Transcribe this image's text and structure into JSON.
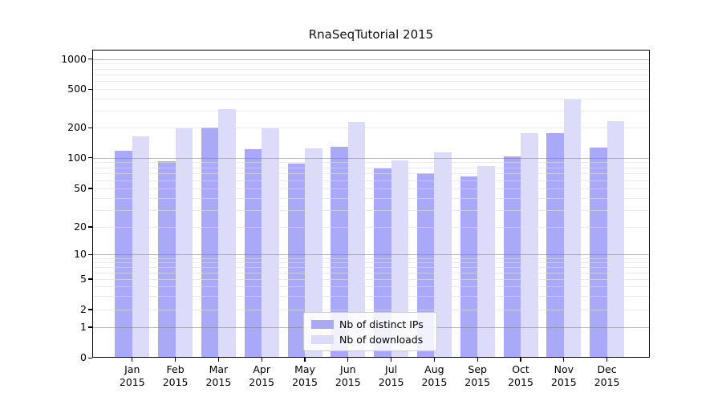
{
  "chart_data": {
    "type": "bar",
    "title": "RnaSeqTutorial 2015",
    "categories": [
      "Jan",
      "Feb",
      "Mar",
      "Apr",
      "May",
      "Jun",
      "Jul",
      "Aug",
      "Sep",
      "Oct",
      "Nov",
      "Dec"
    ],
    "category_year": "2015",
    "series": [
      {
        "name": "Nb of distinct IPs",
        "color": "#a9a9f7",
        "values": [
          117,
          92,
          200,
          122,
          87,
          128,
          78,
          71,
          65,
          102,
          177,
          127
        ]
      },
      {
        "name": "Nb of downloads",
        "color": "#dcdcfa",
        "values": [
          163,
          199,
          312,
          197,
          125,
          228,
          94,
          112,
          83,
          177,
          390,
          234
        ]
      }
    ],
    "y_ticks": [
      0,
      1,
      2,
      5,
      10,
      20,
      50,
      100,
      200,
      500,
      1000
    ],
    "yscale": "log-with-zero-baseline",
    "ylim": [
      0,
      1200
    ],
    "xlabel": "",
    "ylabel": "",
    "grid": "horizontal major and minor gridlines drawn over bars",
    "legend_position": "lower center"
  },
  "colors": {
    "grid_major": "#b5b5b5",
    "grid_minor": "#e9e9ee",
    "axis": "#000000",
    "background": "#ffffff"
  }
}
